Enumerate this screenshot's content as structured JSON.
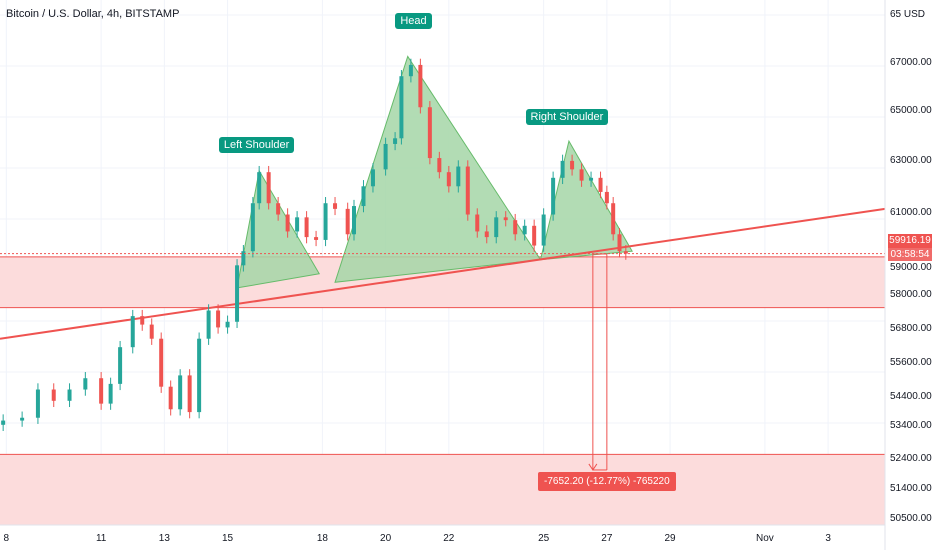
{
  "chart_data": {
    "type": "candlestick",
    "title": "Bitcoin / U.S. Dollar, 4h, BITSTAMP",
    "currency": "USD",
    "ylim": [
      50300,
      68900
    ],
    "x_axis": {
      "range_days": [
        7.8,
        35.8
      ],
      "ticks": [
        {
          "day": 8,
          "label": "8"
        },
        {
          "day": 11,
          "label": "11"
        },
        {
          "day": 13,
          "label": "13"
        },
        {
          "day": 15,
          "label": "15"
        },
        {
          "day": 18,
          "label": "18"
        },
        {
          "day": 20,
          "label": "20"
        },
        {
          "day": 22,
          "label": "22"
        },
        {
          "day": 25,
          "label": "25"
        },
        {
          "day": 27,
          "label": "27"
        },
        {
          "day": 29,
          "label": "29"
        },
        {
          "day": 32,
          "label": "Nov"
        },
        {
          "day": 34,
          "label": "3"
        }
      ]
    },
    "y_ticks": [
      "65 USD",
      "67000.00",
      "65000.00",
      "63000.00",
      "61000.00",
      "59000.00",
      "58000.00",
      "56800.00",
      "55600.00",
      "54400.00",
      "53400.00",
      "52400.00",
      "51400.00",
      "50500.00"
    ],
    "last_price": "59916.19",
    "countdown": "03:58:54",
    "series": [
      {
        "name": "BTCUSD",
        "points": [
          {
            "d": 7.9,
            "v": 54000
          },
          {
            "d": 8.5,
            "v": 54100
          },
          {
            "d": 9.0,
            "v": 55100
          },
          {
            "d": 9.5,
            "v": 54700
          },
          {
            "d": 10.0,
            "v": 55100
          },
          {
            "d": 10.5,
            "v": 55500
          },
          {
            "d": 11.0,
            "v": 54600
          },
          {
            "d": 11.3,
            "v": 55300
          },
          {
            "d": 11.6,
            "v": 56600
          },
          {
            "d": 12.0,
            "v": 57700
          },
          {
            "d": 12.3,
            "v": 57400
          },
          {
            "d": 12.6,
            "v": 56900
          },
          {
            "d": 12.9,
            "v": 55200
          },
          {
            "d": 13.2,
            "v": 54400
          },
          {
            "d": 13.5,
            "v": 55600
          },
          {
            "d": 13.8,
            "v": 54300
          },
          {
            "d": 14.1,
            "v": 56900
          },
          {
            "d": 14.4,
            "v": 57900
          },
          {
            "d": 14.7,
            "v": 57300
          },
          {
            "d": 15.0,
            "v": 57500
          },
          {
            "d": 15.3,
            "v": 59500
          },
          {
            "d": 15.5,
            "v": 60000
          },
          {
            "d": 15.8,
            "v": 61700
          },
          {
            "d": 16.0,
            "v": 62800
          },
          {
            "d": 16.3,
            "v": 61700
          },
          {
            "d": 16.6,
            "v": 61300
          },
          {
            "d": 16.9,
            "v": 60700
          },
          {
            "d": 17.2,
            "v": 61200
          },
          {
            "d": 17.5,
            "v": 60500
          },
          {
            "d": 17.8,
            "v": 60400
          },
          {
            "d": 18.1,
            "v": 61700
          },
          {
            "d": 18.4,
            "v": 61500
          },
          {
            "d": 18.8,
            "v": 60600
          },
          {
            "d": 19.0,
            "v": 61600
          },
          {
            "d": 19.3,
            "v": 62300
          },
          {
            "d": 19.6,
            "v": 62900
          },
          {
            "d": 20.0,
            "v": 63800
          },
          {
            "d": 20.3,
            "v": 64000
          },
          {
            "d": 20.5,
            "v": 66200
          },
          {
            "d": 20.8,
            "v": 66600
          },
          {
            "d": 21.1,
            "v": 65100
          },
          {
            "d": 21.4,
            "v": 63300
          },
          {
            "d": 21.7,
            "v": 62800
          },
          {
            "d": 22.0,
            "v": 62300
          },
          {
            "d": 22.3,
            "v": 63000
          },
          {
            "d": 22.6,
            "v": 61300
          },
          {
            "d": 22.9,
            "v": 60700
          },
          {
            "d": 23.2,
            "v": 60500
          },
          {
            "d": 23.5,
            "v": 61200
          },
          {
            "d": 23.8,
            "v": 61100
          },
          {
            "d": 24.1,
            "v": 60600
          },
          {
            "d": 24.4,
            "v": 60900
          },
          {
            "d": 24.7,
            "v": 60200
          },
          {
            "d": 25.0,
            "v": 61300
          },
          {
            "d": 25.3,
            "v": 62600
          },
          {
            "d": 25.6,
            "v": 63200
          },
          {
            "d": 25.9,
            "v": 62900
          },
          {
            "d": 26.2,
            "v": 62500
          },
          {
            "d": 26.5,
            "v": 62600
          },
          {
            "d": 26.8,
            "v": 62100
          },
          {
            "d": 27.0,
            "v": 61700
          },
          {
            "d": 27.2,
            "v": 60600
          },
          {
            "d": 27.4,
            "v": 60000
          },
          {
            "d": 27.6,
            "v": 59916
          }
        ]
      }
    ],
    "pattern": {
      "name": "Head and Shoulders",
      "left_triangle": [
        [
          15.3,
          58700
        ],
        [
          16.0,
          62850
        ],
        [
          17.9,
          59200
        ]
      ],
      "head_triangle": [
        [
          18.4,
          58900
        ],
        [
          20.7,
          66900
        ],
        [
          24.9,
          59700
        ]
      ],
      "right_triangle": [
        [
          24.9,
          59700
        ],
        [
          25.8,
          63900
        ],
        [
          27.8,
          60000
        ]
      ],
      "labels": [
        {
          "text": "Left Shoulder",
          "anchor_day": 16.0,
          "anchor_price": 63400
        },
        {
          "text": "Head",
          "anchor_day": 20.7,
          "anchor_price": 67800
        },
        {
          "text": "Right Shoulder",
          "anchor_day": 25.8,
          "anchor_price": 64400
        }
      ]
    },
    "neckline": {
      "from": [
        7.8,
        56900
      ],
      "to": [
        35.8,
        61500
      ]
    },
    "zones": [
      {
        "from_price": 58000,
        "to_price": 59800,
        "color": "#fcdcdc"
      },
      {
        "from_price": 50300,
        "to_price": 52800,
        "color": "#fcdcdc"
      }
    ],
    "measure": {
      "from_price": 59900,
      "to_price": 52250,
      "day": 27.0,
      "text": "-7652.20 (-12.77%) -765220"
    },
    "colors": {
      "up": "#26a69a",
      "down": "#ef5350",
      "line": "#ef5350",
      "pattern_fill": "#a5d6a7",
      "label_bg": "#089981"
    }
  }
}
